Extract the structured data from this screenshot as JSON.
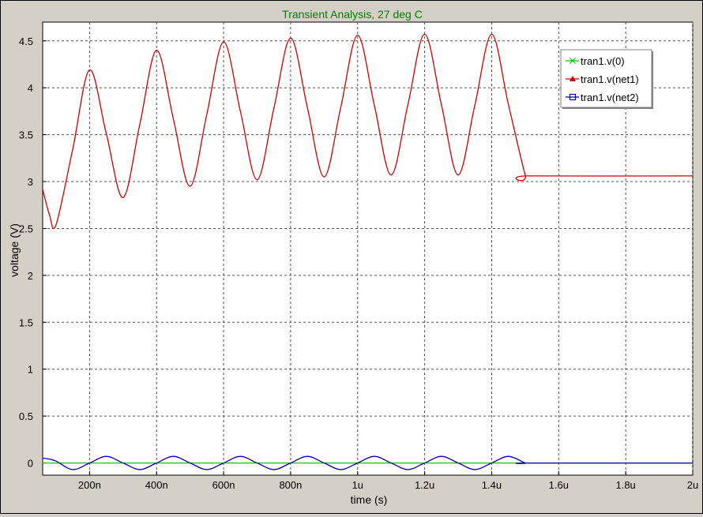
{
  "chart_data": {
    "type": "line",
    "title": "Transient Analysis, 27 deg C",
    "xlabel": "time (s)",
    "ylabel": "voltage (V)",
    "xlim": [
      60,
      2000
    ],
    "ylim": [
      -0.13,
      4.7
    ],
    "x_unit_note": "ns",
    "xticks": [
      {
        "value": 200,
        "label": "200n"
      },
      {
        "value": 400,
        "label": "400n"
      },
      {
        "value": 600,
        "label": "600n"
      },
      {
        "value": 800,
        "label": "800n"
      },
      {
        "value": 1000,
        "label": "1u"
      },
      {
        "value": 1200,
        "label": "1.2u"
      },
      {
        "value": 1400,
        "label": "1.4u"
      },
      {
        "value": 1600,
        "label": "1.6u"
      },
      {
        "value": 1800,
        "label": "1.8u"
      },
      {
        "value": 2000,
        "label": "2u"
      }
    ],
    "yticks": [
      {
        "value": 0,
        "label": "0"
      },
      {
        "value": 0.5,
        "label": "0.5"
      },
      {
        "value": 1,
        "label": "1"
      },
      {
        "value": 1.5,
        "label": "1.5"
      },
      {
        "value": 2,
        "label": "2"
      },
      {
        "value": 2.5,
        "label": "2.5"
      },
      {
        "value": 3,
        "label": "3"
      },
      {
        "value": 3.5,
        "label": "3.5"
      },
      {
        "value": 4,
        "label": "4"
      },
      {
        "value": 4.5,
        "label": "4.5"
      }
    ],
    "grid": true,
    "legend_position": "top-right",
    "series": [
      {
        "name": "tran1.v(0)",
        "color": "#00cc00",
        "marker": "x",
        "x": [
          60,
          2000
        ],
        "y": [
          0,
          0
        ]
      },
      {
        "name": "tran1.v(net1)",
        "color": "#cc0000",
        "marker": "triangle",
        "x": [
          60,
          80,
          100,
          150,
          200,
          250,
          300,
          350,
          400,
          450,
          500,
          550,
          600,
          650,
          700,
          750,
          800,
          850,
          900,
          950,
          1000,
          1050,
          1100,
          1150,
          1200,
          1250,
          1300,
          1350,
          1400,
          1450,
          1500,
          1510,
          2000
        ],
        "y": [
          2.92,
          2.65,
          2.54,
          3.35,
          4.19,
          3.51,
          2.83,
          3.61,
          4.4,
          3.67,
          2.95,
          3.72,
          4.49,
          3.75,
          3.02,
          3.78,
          4.53,
          3.79,
          3.05,
          3.8,
          4.56,
          3.81,
          3.07,
          3.82,
          4.57,
          3.82,
          3.07,
          3.82,
          4.57,
          3.82,
          3.07,
          3.06,
          3.06
        ]
      },
      {
        "name": "tran1.v(net2)",
        "color": "#0000aa",
        "marker": "square",
        "x": [
          60,
          75,
          100,
          150,
          200,
          250,
          300,
          350,
          400,
          450,
          500,
          550,
          600,
          650,
          700,
          750,
          800,
          850,
          900,
          950,
          1000,
          1050,
          1100,
          1150,
          1200,
          1250,
          1300,
          1350,
          1400,
          1450,
          1500,
          1510,
          2000
        ],
        "y": [
          0.05,
          0.045,
          0.02,
          -0.07,
          0.0,
          0.07,
          0.0,
          -0.07,
          0.0,
          0.07,
          0.0,
          -0.07,
          0.0,
          0.07,
          0.0,
          -0.07,
          0.0,
          0.07,
          0.0,
          -0.07,
          0.0,
          0.07,
          0.0,
          -0.07,
          0.0,
          0.07,
          0.0,
          -0.07,
          0.0,
          0.07,
          0.0,
          0.0,
          0.0
        ]
      }
    ]
  }
}
